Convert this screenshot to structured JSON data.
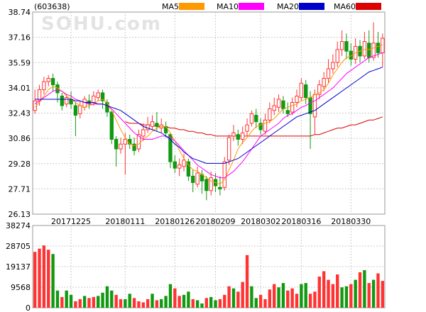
{
  "header": {
    "code": "(603638)",
    "legend": [
      {
        "label": "MA5",
        "color": "#ff9900"
      },
      {
        "label": "MA10",
        "color": "#ff00ff"
      },
      {
        "label": "MA20",
        "color": "#0000cc"
      },
      {
        "label": "MA60",
        "color": "#dd0000"
      }
    ]
  },
  "watermark": "SOHU.com",
  "colors": {
    "up": "#ff3333",
    "down": "#119911",
    "grid": "#cccccc",
    "frame": "#999999",
    "text": "#000000"
  },
  "chart_data": [
    {
      "type": "candlestick",
      "title": "",
      "ylim": [
        26.13,
        38.74
      ],
      "y_ticks": [
        "38.74",
        "37.16",
        "35.59",
        "34.01",
        "32.43",
        "30.86",
        "29.28",
        "27.71",
        "26.13"
      ],
      "x_ticks": [
        "20171225",
        "20180111",
        "20180126",
        "20180209",
        "20180302",
        "20180316",
        "20180330"
      ],
      "x_tick_index": [
        8,
        20,
        31,
        40,
        50,
        59,
        70
      ],
      "grid": true,
      "candles": [
        {
          "o": 32.6,
          "c": 33.2,
          "h": 33.9,
          "l": 32.4
        },
        {
          "o": 33.2,
          "c": 33.9,
          "h": 34.2,
          "l": 32.9
        },
        {
          "o": 33.9,
          "c": 34.4,
          "h": 34.7,
          "l": 33.6
        },
        {
          "o": 34.4,
          "c": 34.6,
          "h": 34.8,
          "l": 34.1
        },
        {
          "o": 34.6,
          "c": 34.2,
          "h": 34.9,
          "l": 33.8
        },
        {
          "o": 34.2,
          "c": 33.7,
          "h": 34.4,
          "l": 33.1
        },
        {
          "o": 33.5,
          "c": 32.9,
          "h": 33.7,
          "l": 32.6
        },
        {
          "o": 33.0,
          "c": 33.4,
          "h": 33.6,
          "l": 32.8
        },
        {
          "o": 33.3,
          "c": 33.0,
          "h": 33.8,
          "l": 32.7
        },
        {
          "o": 32.9,
          "c": 32.3,
          "h": 33.1,
          "l": 31.0
        },
        {
          "o": 32.4,
          "c": 32.9,
          "h": 33.2,
          "l": 32.1
        },
        {
          "o": 32.8,
          "c": 33.3,
          "h": 33.5,
          "l": 32.6
        },
        {
          "o": 33.2,
          "c": 33.0,
          "h": 33.6,
          "l": 32.7
        },
        {
          "o": 33.1,
          "c": 33.5,
          "h": 33.8,
          "l": 32.9
        },
        {
          "o": 33.4,
          "c": 33.7,
          "h": 33.9,
          "l": 33.2
        },
        {
          "o": 33.7,
          "c": 33.2,
          "h": 33.9,
          "l": 32.7
        },
        {
          "o": 33.1,
          "c": 32.5,
          "h": 33.3,
          "l": 32.2
        },
        {
          "o": 32.5,
          "c": 30.8,
          "h": 32.6,
          "l": 30.5
        },
        {
          "o": 30.8,
          "c": 30.2,
          "h": 31.0,
          "l": 29.1
        },
        {
          "o": 30.2,
          "c": 30.5,
          "h": 30.9,
          "l": 29.9
        },
        {
          "o": 30.5,
          "c": 30.8,
          "h": 31.2,
          "l": 28.6
        },
        {
          "o": 30.8,
          "c": 30.5,
          "h": 31.1,
          "l": 30.2
        },
        {
          "o": 30.5,
          "c": 30.1,
          "h": 30.9,
          "l": 29.8
        },
        {
          "o": 30.2,
          "c": 31.1,
          "h": 31.4,
          "l": 30.0
        },
        {
          "o": 31.0,
          "c": 31.4,
          "h": 31.8,
          "l": 30.7
        },
        {
          "o": 31.4,
          "c": 31.7,
          "h": 32.2,
          "l": 31.2
        },
        {
          "o": 31.6,
          "c": 31.9,
          "h": 32.3,
          "l": 31.4
        },
        {
          "o": 31.8,
          "c": 31.6,
          "h": 32.5,
          "l": 31.3
        },
        {
          "o": 31.5,
          "c": 31.7,
          "h": 32.1,
          "l": 31.2
        },
        {
          "o": 31.6,
          "c": 31.2,
          "h": 31.9,
          "l": 30.9
        },
        {
          "o": 31.1,
          "c": 29.4,
          "h": 31.2,
          "l": 29.0
        },
        {
          "o": 29.4,
          "c": 29.0,
          "h": 29.8,
          "l": 28.7
        },
        {
          "o": 29.0,
          "c": 29.2,
          "h": 29.6,
          "l": 28.5
        },
        {
          "o": 29.1,
          "c": 29.5,
          "h": 29.9,
          "l": 28.8
        },
        {
          "o": 29.4,
          "c": 28.5,
          "h": 29.6,
          "l": 28.2
        },
        {
          "o": 28.5,
          "c": 28.1,
          "h": 28.9,
          "l": 27.5
        },
        {
          "o": 28.0,
          "c": 28.7,
          "h": 29.1,
          "l": 27.8
        },
        {
          "o": 28.6,
          "c": 28.2,
          "h": 28.9,
          "l": 27.4
        },
        {
          "o": 28.3,
          "c": 27.6,
          "h": 28.5,
          "l": 27.0
        },
        {
          "o": 27.6,
          "c": 28.4,
          "h": 28.8,
          "l": 27.3
        },
        {
          "o": 28.3,
          "c": 27.9,
          "h": 28.7,
          "l": 27.5
        },
        {
          "o": 27.8,
          "c": 27.7,
          "h": 28.5,
          "l": 27.3
        },
        {
          "o": 27.8,
          "c": 29.4,
          "h": 29.7,
          "l": 27.6
        },
        {
          "o": 29.5,
          "c": 30.9,
          "h": 31.1,
          "l": 29.2
        },
        {
          "o": 31.0,
          "c": 31.2,
          "h": 31.7,
          "l": 30.7
        },
        {
          "o": 31.1,
          "c": 30.8,
          "h": 31.4,
          "l": 30.4
        },
        {
          "o": 30.8,
          "c": 31.2,
          "h": 31.6,
          "l": 30.5
        },
        {
          "o": 31.3,
          "c": 31.7,
          "h": 32.1,
          "l": 31.0
        },
        {
          "o": 31.8,
          "c": 32.4,
          "h": 32.6,
          "l": 31.6
        },
        {
          "o": 32.3,
          "c": 31.9,
          "h": 32.7,
          "l": 31.5
        },
        {
          "o": 31.8,
          "c": 31.4,
          "h": 32.1,
          "l": 31.1
        },
        {
          "o": 31.3,
          "c": 32.0,
          "h": 32.4,
          "l": 31.1
        },
        {
          "o": 32.0,
          "c": 32.7,
          "h": 33.1,
          "l": 31.8
        },
        {
          "o": 32.6,
          "c": 32.9,
          "h": 33.4,
          "l": 32.3
        },
        {
          "o": 32.8,
          "c": 33.3,
          "h": 33.6,
          "l": 32.5
        },
        {
          "o": 33.2,
          "c": 32.7,
          "h": 33.5,
          "l": 32.4
        },
        {
          "o": 32.6,
          "c": 32.4,
          "h": 33.1,
          "l": 32.2
        },
        {
          "o": 32.5,
          "c": 33.1,
          "h": 33.4,
          "l": 32.3
        },
        {
          "o": 33.1,
          "c": 33.5,
          "h": 33.9,
          "l": 32.8
        },
        {
          "o": 33.4,
          "c": 34.3,
          "h": 34.6,
          "l": 33.2
        },
        {
          "o": 34.2,
          "c": 33.4,
          "h": 34.5,
          "l": 33.0
        },
        {
          "o": 33.4,
          "c": 32.4,
          "h": 33.8,
          "l": 30.2
        },
        {
          "o": 32.2,
          "c": 33.6,
          "h": 33.9,
          "l": 31.1
        },
        {
          "o": 33.6,
          "c": 34.2,
          "h": 34.5,
          "l": 33.3
        },
        {
          "o": 34.1,
          "c": 34.6,
          "h": 35.0,
          "l": 33.8
        },
        {
          "o": 34.6,
          "c": 35.2,
          "h": 35.8,
          "l": 34.3
        },
        {
          "o": 35.2,
          "c": 35.6,
          "h": 36.1,
          "l": 34.9
        },
        {
          "o": 35.6,
          "c": 36.4,
          "h": 36.9,
          "l": 35.3
        },
        {
          "o": 36.4,
          "c": 36.9,
          "h": 37.6,
          "l": 36.0
        },
        {
          "o": 36.9,
          "c": 36.3,
          "h": 37.4,
          "l": 35.8
        },
        {
          "o": 36.3,
          "c": 35.8,
          "h": 36.8,
          "l": 35.4
        },
        {
          "o": 35.8,
          "c": 36.6,
          "h": 37.1,
          "l": 35.5
        },
        {
          "o": 36.6,
          "c": 36.0,
          "h": 37.0,
          "l": 35.6
        },
        {
          "o": 36.0,
          "c": 36.9,
          "h": 37.5,
          "l": 35.8
        },
        {
          "o": 36.8,
          "c": 35.9,
          "h": 37.6,
          "l": 35.6
        },
        {
          "o": 35.9,
          "c": 36.8,
          "h": 38.1,
          "l": 35.7
        },
        {
          "o": 36.8,
          "c": 36.2,
          "h": 37.5,
          "l": 35.9
        },
        {
          "o": 36.2,
          "c": 37.1,
          "h": 37.4,
          "l": 35.3
        }
      ],
      "ma_series": [
        {
          "name": "MA5",
          "color": "#ff9900",
          "values": [
            32.8,
            33.1,
            33.5,
            33.9,
            34.1,
            34.0,
            33.8,
            33.5,
            33.3,
            33.1,
            32.9,
            32.8,
            32.9,
            33.0,
            33.2,
            33.3,
            33.1,
            32.6,
            32.0,
            31.4,
            30.9,
            30.5,
            30.4,
            30.5,
            30.8,
            31.0,
            31.3,
            31.5,
            31.6,
            31.6,
            31.2,
            30.7,
            30.1,
            29.6,
            29.2,
            28.9,
            28.8,
            28.6,
            28.4,
            28.2,
            28.1,
            28.0,
            28.3,
            28.9,
            29.5,
            30.2,
            30.6,
            30.9,
            31.3,
            31.6,
            31.7,
            31.8,
            31.9,
            32.1,
            32.4,
            32.7,
            32.8,
            32.9,
            33.0,
            33.2,
            33.3,
            33.4,
            33.6,
            33.7,
            33.9,
            34.3,
            34.8,
            35.2,
            35.6,
            35.9,
            36.0,
            36.2,
            36.3,
            36.4,
            36.4,
            36.5,
            36.6,
            36.7
          ]
        },
        {
          "name": "MA10",
          "color": "#ff00ff",
          "values": [
            33.0,
            33.2,
            33.4,
            33.6,
            33.8,
            33.9,
            33.8,
            33.6,
            33.5,
            33.3,
            33.2,
            33.1,
            33.0,
            33.0,
            33.0,
            33.0,
            32.9,
            32.7,
            32.4,
            32.1,
            31.8,
            31.5,
            31.2,
            31.0,
            30.8,
            30.8,
            30.8,
            30.9,
            31.0,
            31.0,
            30.9,
            30.7,
            30.4,
            30.1,
            29.8,
            29.5,
            29.2,
            29.0,
            28.8,
            28.6,
            28.5,
            28.4,
            28.4,
            28.6,
            28.8,
            29.1,
            29.4,
            29.8,
            30.2,
            30.6,
            31.0,
            31.2,
            31.4,
            31.6,
            31.8,
            32.1,
            32.3,
            32.4,
            32.6,
            32.8,
            32.9,
            33.1,
            33.2,
            33.4,
            33.6,
            33.8,
            34.0,
            34.3,
            34.6,
            34.9,
            35.1,
            35.3,
            35.5,
            35.7,
            35.9,
            36.0,
            36.1,
            36.2
          ]
        },
        {
          "name": "MA20",
          "color": "#0000cc",
          "values": [
            33.3,
            33.3,
            33.3,
            33.3,
            33.3,
            33.3,
            33.3,
            33.3,
            33.3,
            33.2,
            33.2,
            33.1,
            33.1,
            33.1,
            33.0,
            33.0,
            32.9,
            32.8,
            32.7,
            32.6,
            32.4,
            32.2,
            32.0,
            31.8,
            31.6,
            31.5,
            31.4,
            31.3,
            31.2,
            31.0,
            30.8,
            30.5,
            30.3,
            30.0,
            29.8,
            29.6,
            29.5,
            29.4,
            29.3,
            29.3,
            29.3,
            29.3,
            29.3,
            29.4,
            29.5,
            29.6,
            29.8,
            30.0,
            30.2,
            30.4,
            30.6,
            30.8,
            31.0,
            31.2,
            31.4,
            31.6,
            31.8,
            32.0,
            32.2,
            32.3,
            32.4,
            32.5,
            32.6,
            32.8,
            33.0,
            33.2,
            33.4,
            33.6,
            33.8,
            34.0,
            34.2,
            34.4,
            34.6,
            34.8,
            35.0,
            35.1,
            35.2,
            35.3
          ]
        },
        {
          "name": "MA60",
          "color": "#dd0000",
          "values": [
            null,
            null,
            null,
            null,
            null,
            null,
            null,
            null,
            null,
            null,
            null,
            null,
            null,
            null,
            null,
            null,
            null,
            null,
            null,
            null,
            31.9,
            31.8,
            31.8,
            31.8,
            31.7,
            31.7,
            31.7,
            31.6,
            31.6,
            31.6,
            31.5,
            31.5,
            31.4,
            31.4,
            31.3,
            31.3,
            31.2,
            31.2,
            31.1,
            31.1,
            31.0,
            31.0,
            31.0,
            31.0,
            31.0,
            31.0,
            31.0,
            31.0,
            31.0,
            31.0,
            31.0,
            31.0,
            31.0,
            31.0,
            31.0,
            31.0,
            31.0,
            31.0,
            31.0,
            31.0,
            31.0,
            31.0,
            31.1,
            31.1,
            31.2,
            31.3,
            31.4,
            31.5,
            31.5,
            31.6,
            31.7,
            31.7,
            31.8,
            31.9,
            32.0,
            32.0,
            32.1,
            32.2
          ]
        }
      ]
    },
    {
      "type": "bar",
      "title": "",
      "ylim": [
        0,
        38274
      ],
      "y_ticks": [
        "38274",
        "28705",
        "19137",
        "9568",
        "0"
      ],
      "values": [
        26000,
        27500,
        29000,
        27000,
        25000,
        8000,
        5000,
        8000,
        6000,
        3000,
        4000,
        5500,
        4500,
        5000,
        5500,
        7000,
        10000,
        8000,
        6000,
        4000,
        4000,
        6500,
        4500,
        3000,
        2500,
        4000,
        6500,
        3500,
        4000,
        5500,
        11000,
        9000,
        5500,
        6000,
        7500,
        4000,
        3500,
        2000,
        4500,
        5000,
        3500,
        4000,
        6000,
        10000,
        9000,
        7500,
        12000,
        24500,
        10000,
        4500,
        6000,
        4000,
        8500,
        11000,
        9500,
        11500,
        8000,
        9000,
        6500,
        11000,
        11500,
        6500,
        7500,
        14500,
        17000,
        13000,
        11000,
        15500,
        9500,
        10000,
        11000,
        13000,
        16500,
        17500,
        11500,
        13000,
        16000,
        12500
      ],
      "up": [
        true,
        true,
        true,
        true,
        false,
        false,
        true,
        false,
        false,
        true,
        true,
        false,
        true,
        true,
        false,
        false,
        false,
        false,
        true,
        true,
        false,
        false,
        true,
        true,
        true,
        true,
        false,
        true,
        false,
        false,
        false,
        true,
        true,
        false,
        false,
        true,
        false,
        false,
        true,
        false,
        false,
        true,
        true,
        true,
        false,
        true,
        true,
        true,
        false,
        false,
        true,
        true,
        true,
        true,
        false,
        false,
        true,
        true,
        true,
        false,
        false,
        true,
        true,
        true,
        true,
        true,
        true,
        true,
        false,
        false,
        true,
        false,
        true,
        false,
        true,
        false,
        true,
        true
      ]
    }
  ]
}
